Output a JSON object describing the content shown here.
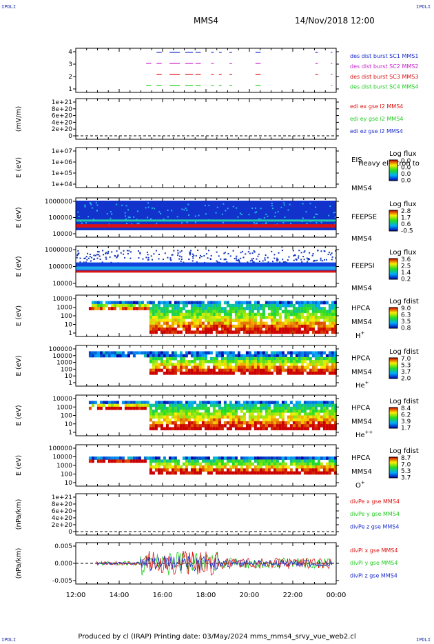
{
  "header": {
    "corner_tl": "IPDLI",
    "corner_tr": "IPDLI",
    "corner_bl": "IPDLI",
    "corner_br": "IPDLI",
    "spacecraft": "MMS4",
    "datetime": "14/Nov/2018 12:00"
  },
  "footer": {
    "text": "Produced by cl (IRAP)   Printing date: 03/May/2024   mms_mms4_srvy_vue_web2.cl"
  },
  "xaxis": {
    "ticks": [
      "12:00",
      "14:00",
      "16:00",
      "18:00",
      "20:00",
      "22:00",
      "00:00"
    ]
  },
  "colors": {
    "blue": "#1a2bcc",
    "green": "#22cc22",
    "red": "#dd1111",
    "magenta": "#cc22cc"
  },
  "chart_data": [
    {
      "type": "scatter",
      "panel": "burst",
      "yticks": [
        "4",
        "3",
        "2",
        "1"
      ],
      "legend": [
        {
          "text": "des dist burst SC1 MMS1",
          "color": "#1a2bcc"
        },
        {
          "text": "des dist burst SC2 MMS2",
          "color": "#cc22cc"
        },
        {
          "text": "des dist burst SC3 MMS3",
          "color": "#dd1111"
        },
        {
          "text": "des dist burst SC4 MMS4",
          "color": "#22cc22"
        }
      ]
    },
    {
      "type": "line",
      "panel": "edi",
      "ylabel": "(mV/m)",
      "yticks": [
        "1e+21",
        "8e+20",
        "6e+20",
        "4e+20",
        "2e+20",
        "0"
      ],
      "legend": [
        {
          "text": "edi ex gse l2 MMS4",
          "color": "#dd1111"
        },
        {
          "text": "edi ey gse l2 MMS4",
          "color": "#22cc22"
        },
        {
          "text": "edi ez gse l2 MMS4",
          "color": "#1a2bcc"
        }
      ]
    },
    {
      "type": "heatmap",
      "panel": "eis",
      "ylabel": "E (eV)",
      "yticks": [
        "1e+07",
        "1e+06",
        "1e+05",
        "1e+04"
      ],
      "instrument": "EIS",
      "craft": "MMS4",
      "extra": "Heavy electron to",
      "cb_title": "Log flux",
      "cb_ticks": [
        "0.0",
        "0.0",
        "0.0",
        "0.0"
      ]
    },
    {
      "type": "heatmap",
      "panel": "feepse",
      "ylabel": "E (eV)",
      "yticks": [
        "1000000",
        "100000",
        "10000"
      ],
      "instrument": "FEEPSE",
      "craft": "MMS4",
      "cb_title": "Log flux",
      "cb_ticks": [
        "2.8",
        "1.7",
        "0.6",
        "-0.5"
      ]
    },
    {
      "type": "heatmap",
      "panel": "feepsi",
      "ylabel": "E (eV)",
      "yticks": [
        "1000000",
        "100000",
        "10000"
      ],
      "instrument": "FEEPSI",
      "craft": "MMS4",
      "cb_title": "Log flux",
      "cb_ticks": [
        "3.6",
        "2.5",
        "1.4",
        "0.2"
      ]
    },
    {
      "type": "heatmap",
      "panel": "hpca_h",
      "ylabel": "E (eV)",
      "yticks": [
        "10000",
        "1000",
        "100",
        "10",
        "1"
      ],
      "instrument": "HPCA",
      "craft": "MMS4",
      "ion": "H",
      "ion_sup": "+",
      "cb_title": "Log fdist",
      "cb_ticks": [
        "9.0",
        "6.3",
        "3.5",
        "0.8"
      ]
    },
    {
      "type": "heatmap",
      "panel": "hpca_he",
      "ylabel": "E (eV)",
      "yticks": [
        "100000",
        "10000",
        "1000",
        "100",
        "10",
        "1"
      ],
      "instrument": "HPCA",
      "craft": "MMS4",
      "ion": "He",
      "ion_sup": "+",
      "cb_title": "Log fdist",
      "cb_ticks": [
        "7.0",
        "5.3",
        "3.7",
        "2.0"
      ]
    },
    {
      "type": "heatmap",
      "panel": "hpca_hepp",
      "ylabel": "E (eV)",
      "yticks": [
        "10000",
        "1000",
        "100",
        "10",
        "1"
      ],
      "instrument": "HPCA",
      "craft": "MMS4",
      "ion": "He",
      "ion_sup": "++",
      "cb_title": "Log fdist",
      "cb_ticks": [
        "8.4",
        "6.2",
        "3.9",
        "1.7"
      ]
    },
    {
      "type": "heatmap",
      "panel": "hpca_o",
      "ylabel": "E (eV)",
      "yticks": [
        "100000",
        "10000",
        "1000",
        "100",
        "10"
      ],
      "instrument": "HPCA",
      "craft": "MMS4",
      "ion": "O",
      "ion_sup": "+",
      "cb_title": "Log fdist",
      "cb_ticks": [
        "8.7",
        "7.0",
        "5.3",
        "3.7"
      ]
    },
    {
      "type": "line",
      "panel": "divpe",
      "ylabel": "(nPa/km)",
      "yticks": [
        "1e+21",
        "8e+20",
        "6e+20",
        "4e+20",
        "2e+20",
        "0"
      ],
      "legend": [
        {
          "text": "divPe x gse MMS4",
          "color": "#dd1111"
        },
        {
          "text": "divPe y gse MMS4",
          "color": "#22cc22"
        },
        {
          "text": "divPe z gse MMS4",
          "color": "#1a2bcc"
        }
      ]
    },
    {
      "type": "line",
      "panel": "divpi",
      "ylabel": "(nPa/km)",
      "yticks": [
        "0.005",
        "0.000",
        "-0.005"
      ],
      "legend": [
        {
          "text": "divPi x gse MMS4",
          "color": "#dd1111"
        },
        {
          "text": "divPi y gse MMS4",
          "color": "#22cc22"
        },
        {
          "text": "divPi z gse MMS4",
          "color": "#1a2bcc"
        }
      ]
    }
  ]
}
